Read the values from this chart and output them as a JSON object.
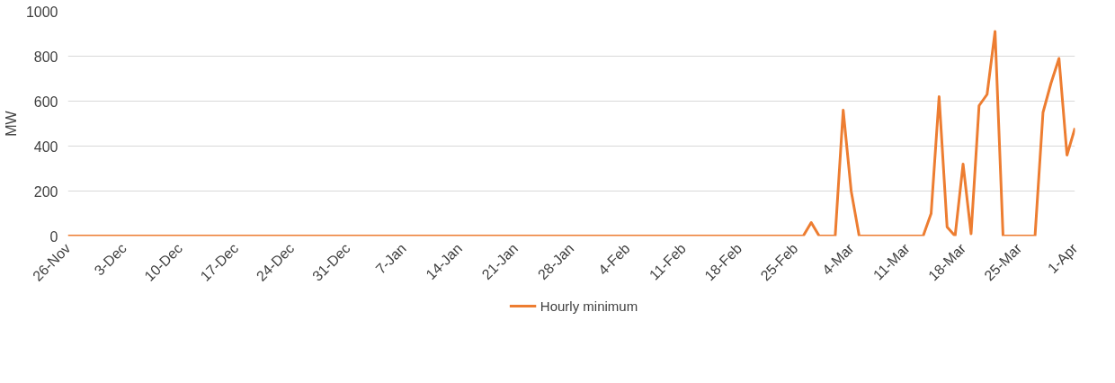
{
  "chart_data": {
    "type": "line",
    "ylabel": "MW",
    "categories": [
      "26-Nov",
      null,
      null,
      null,
      null,
      null,
      null,
      "3-Dec",
      null,
      null,
      null,
      null,
      null,
      null,
      "10-Dec",
      null,
      null,
      null,
      null,
      null,
      null,
      "17-Dec",
      null,
      null,
      null,
      null,
      null,
      null,
      "24-Dec",
      null,
      null,
      null,
      null,
      null,
      null,
      "31-Dec",
      null,
      null,
      null,
      null,
      null,
      null,
      "7-Jan",
      null,
      null,
      null,
      null,
      null,
      null,
      "14-Jan",
      null,
      null,
      null,
      null,
      null,
      null,
      "21-Jan",
      null,
      null,
      null,
      null,
      null,
      null,
      "28-Jan",
      null,
      null,
      null,
      null,
      null,
      null,
      "4-Feb",
      null,
      null,
      null,
      null,
      null,
      null,
      "11-Feb",
      null,
      null,
      null,
      null,
      null,
      null,
      "18-Feb",
      null,
      null,
      null,
      null,
      null,
      null,
      "25-Feb",
      null,
      null,
      null,
      null,
      null,
      null,
      "4-Mar",
      null,
      null,
      null,
      null,
      null,
      null,
      "11-Mar",
      null,
      null,
      null,
      null,
      null,
      null,
      "18-Mar",
      null,
      null,
      null,
      null,
      null,
      null,
      "25-Mar",
      null,
      null,
      null,
      null,
      null,
      null,
      "1-Apr"
    ],
    "series": [
      {
        "name": "Hourly minimum",
        "color": "#ed7d31",
        "values": [
          0,
          0,
          0,
          0,
          0,
          0,
          0,
          0,
          0,
          0,
          0,
          0,
          0,
          0,
          0,
          0,
          0,
          0,
          0,
          0,
          0,
          0,
          0,
          0,
          0,
          0,
          0,
          0,
          0,
          0,
          0,
          0,
          0,
          0,
          0,
          0,
          0,
          0,
          0,
          0,
          0,
          0,
          0,
          0,
          0,
          0,
          0,
          0,
          0,
          0,
          0,
          0,
          0,
          0,
          0,
          0,
          0,
          0,
          0,
          0,
          0,
          0,
          0,
          0,
          0,
          0,
          0,
          0,
          0,
          0,
          0,
          0,
          0,
          0,
          0,
          0,
          0,
          0,
          0,
          0,
          0,
          0,
          0,
          0,
          0,
          0,
          0,
          0,
          0,
          0,
          0,
          0,
          0,
          60,
          0,
          0,
          0,
          560,
          200,
          0,
          0,
          0,
          0,
          0,
          0,
          0,
          0,
          0,
          100,
          620,
          40,
          0,
          320,
          10,
          580,
          630,
          910,
          0,
          0,
          0,
          0,
          0,
          550,
          680,
          790,
          360,
          480
        ]
      }
    ],
    "ylim": [
      0,
      1000
    ],
    "yticks": [
      0,
      200,
      400,
      600,
      800,
      1000
    ],
    "grid": "y",
    "legend": "bottom",
    "marker": "none",
    "line_style": "solid"
  }
}
